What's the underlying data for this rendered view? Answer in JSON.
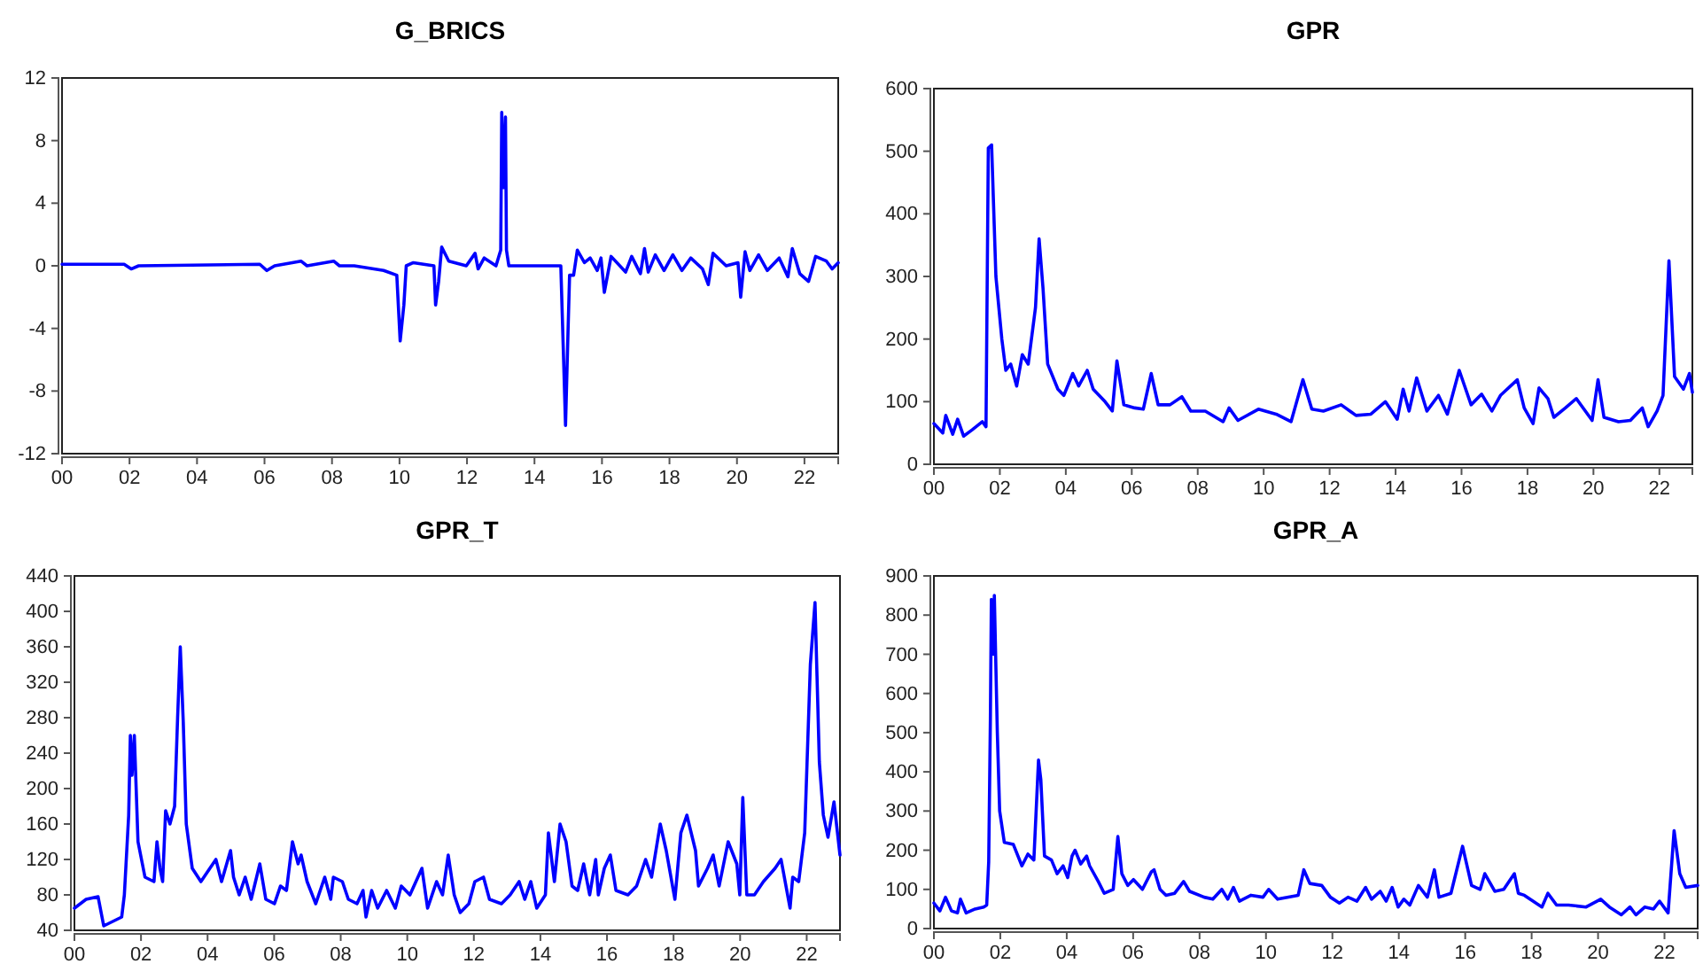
{
  "chart_data": [
    {
      "type": "line",
      "title": "G_BRICS",
      "xlim": [
        0,
        23
      ],
      "xticks": [
        {
          "value": 0,
          "label": "00"
        },
        {
          "value": 2,
          "label": "02"
        },
        {
          "value": 4,
          "label": "04"
        },
        {
          "value": 6,
          "label": "06"
        },
        {
          "value": 8,
          "label": "08"
        },
        {
          "value": 10,
          "label": "10"
        },
        {
          "value": 12,
          "label": "12"
        },
        {
          "value": 14,
          "label": "14"
        },
        {
          "value": 16,
          "label": "16"
        },
        {
          "value": 18,
          "label": "18"
        },
        {
          "value": 20,
          "label": "20"
        },
        {
          "value": 22,
          "label": "22"
        }
      ],
      "ylim": [
        -12,
        12
      ],
      "yticks": [
        -12,
        -8,
        -4,
        0,
        4,
        8,
        12
      ],
      "grid": false,
      "marker": "none",
      "line_style": "solid",
      "x": [
        0.0,
        1.84,
        2.05,
        2.27,
        5.86,
        6.07,
        6.3,
        7.08,
        7.26,
        8.05,
        8.22,
        8.66,
        9.53,
        9.92,
        10.02,
        10.13,
        10.2,
        10.41,
        11.02,
        11.07,
        11.16,
        11.25,
        11.46,
        11.98,
        12.24,
        12.33,
        12.51,
        12.86,
        13.0,
        13.03,
        13.08,
        13.14,
        13.17,
        13.24,
        14.78,
        14.87,
        14.92,
        14.99,
        15.04,
        15.16,
        15.27,
        15.48,
        15.65,
        15.86,
        15.97,
        16.07,
        16.27,
        16.7,
        16.88,
        17.14,
        17.26,
        17.37,
        17.58,
        17.84,
        18.1,
        18.37,
        18.63,
        18.98,
        19.15,
        19.29,
        19.68,
        20.03,
        20.11,
        20.24,
        20.38,
        20.64,
        20.9,
        21.25,
        21.51,
        21.64,
        21.86,
        22.12,
        22.33,
        22.65,
        22.82,
        23.0
      ],
      "series": [
        {
          "color": "#0000ff",
          "values": [
            0.1,
            0.1,
            -0.2,
            0,
            0.1,
            -0.3,
            0,
            0.3,
            0,
            0.3,
            0,
            0,
            -0.3,
            -0.6,
            -4.8,
            -2.5,
            0,
            0.2,
            0,
            -2.5,
            -1,
            1.2,
            0.3,
            0,
            0.8,
            -0.2,
            0.5,
            0,
            1,
            9.8,
            5,
            9.5,
            1,
            0,
            0,
            -6.5,
            -10.2,
            -4.5,
            -0.6,
            -0.6,
            1,
            0.2,
            0.5,
            -0.3,
            0.5,
            -1.7,
            0.6,
            -0.4,
            0.6,
            -0.5,
            1.1,
            -0.4,
            0.7,
            -0.3,
            0.7,
            -0.3,
            0.5,
            -0.2,
            -1.2,
            0.8,
            0,
            0.2,
            -2,
            0.9,
            -0.3,
            0.7,
            -0.3,
            0.5,
            -0.7,
            1.1,
            -0.5,
            -1,
            0.6,
            0.3,
            -0.2,
            0.2
          ]
        }
      ]
    },
    {
      "type": "line",
      "title": "GPR",
      "xlim": [
        0,
        23
      ],
      "xticks": [
        {
          "value": 0,
          "label": "00"
        },
        {
          "value": 2,
          "label": "02"
        },
        {
          "value": 4,
          "label": "04"
        },
        {
          "value": 6,
          "label": "06"
        },
        {
          "value": 8,
          "label": "08"
        },
        {
          "value": 10,
          "label": "10"
        },
        {
          "value": 12,
          "label": "12"
        },
        {
          "value": 14,
          "label": "14"
        },
        {
          "value": 16,
          "label": "16"
        },
        {
          "value": 18,
          "label": "18"
        },
        {
          "value": 20,
          "label": "20"
        },
        {
          "value": 22,
          "label": "22"
        }
      ],
      "ylim": [
        0,
        600
      ],
      "yticks": [
        0,
        100,
        200,
        300,
        400,
        500,
        600
      ],
      "grid": false,
      "marker": "none",
      "line_style": "solid",
      "x": [
        0.0,
        0.27,
        0.36,
        0.57,
        0.72,
        0.9,
        1.16,
        1.47,
        1.58,
        1.65,
        1.75,
        1.88,
        2.06,
        2.18,
        2.33,
        2.51,
        2.68,
        2.86,
        3.08,
        3.19,
        3.31,
        3.45,
        3.76,
        3.94,
        4.21,
        4.39,
        4.65,
        4.83,
        5.19,
        5.41,
        5.55,
        5.76,
        6.09,
        6.35,
        6.59,
        6.8,
        7.16,
        7.52,
        7.79,
        8.23,
        8.77,
        8.95,
        9.22,
        9.84,
        10.38,
        10.83,
        11.19,
        11.46,
        11.81,
        12.35,
        12.8,
        13.25,
        13.69,
        14.05,
        14.23,
        14.41,
        14.64,
        14.95,
        15.3,
        15.57,
        15.93,
        16.29,
        16.61,
        16.92,
        17.18,
        17.69,
        17.9,
        18.17,
        18.35,
        18.62,
        18.8,
        19.15,
        19.48,
        19.96,
        20.14,
        20.32,
        20.76,
        21.12,
        21.48,
        21.66,
        21.93,
        22.11,
        22.29,
        22.46,
        22.73,
        22.91,
        23.0
      ],
      "series": [
        {
          "color": "#0000ff",
          "values": [
            65,
            50,
            78,
            48,
            72,
            45,
            55,
            68,
            60,
            505,
            510,
            300,
            200,
            150,
            160,
            125,
            175,
            160,
            250,
            360,
            280,
            160,
            120,
            110,
            145,
            125,
            150,
            120,
            100,
            85,
            165,
            95,
            90,
            88,
            145,
            95,
            95,
            108,
            85,
            85,
            68,
            90,
            70,
            88,
            80,
            68,
            135,
            88,
            85,
            95,
            78,
            80,
            100,
            72,
            120,
            85,
            138,
            85,
            110,
            80,
            150,
            95,
            112,
            85,
            110,
            135,
            90,
            65,
            122,
            105,
            75,
            90,
            105,
            70,
            135,
            75,
            68,
            70,
            90,
            60,
            85,
            110,
            325,
            140,
            120,
            145,
            115
          ]
        }
      ]
    },
    {
      "type": "line",
      "title": "GPR_T",
      "xlim": [
        0,
        23
      ],
      "xticks": [
        {
          "value": 0,
          "label": "00"
        },
        {
          "value": 2,
          "label": "02"
        },
        {
          "value": 4,
          "label": "04"
        },
        {
          "value": 6,
          "label": "06"
        },
        {
          "value": 8,
          "label": "08"
        },
        {
          "value": 10,
          "label": "10"
        },
        {
          "value": 12,
          "label": "12"
        },
        {
          "value": 14,
          "label": "14"
        },
        {
          "value": 16,
          "label": "16"
        },
        {
          "value": 18,
          "label": "18"
        },
        {
          "value": 20,
          "label": "20"
        },
        {
          "value": 22,
          "label": "22"
        }
      ],
      "ylim": [
        40,
        440
      ],
      "yticks": [
        40,
        80,
        120,
        160,
        200,
        240,
        280,
        320,
        360,
        400,
        440
      ],
      "grid": false,
      "marker": "none",
      "line_style": "solid",
      "x": [
        0.0,
        0.35,
        0.71,
        0.88,
        1.42,
        1.5,
        1.63,
        1.68,
        1.73,
        1.8,
        1.91,
        2.12,
        2.39,
        2.48,
        2.57,
        2.65,
        2.74,
        2.87,
        3.01,
        3.1,
        3.18,
        3.27,
        3.36,
        3.54,
        3.8,
        3.98,
        4.25,
        4.42,
        4.69,
        4.78,
        4.95,
        5.13,
        5.31,
        5.57,
        5.75,
        6.01,
        6.19,
        6.37,
        6.55,
        6.72,
        6.81,
        6.99,
        7.25,
        7.52,
        7.7,
        7.78,
        8.05,
        8.23,
        8.49,
        8.67,
        8.76,
        8.93,
        9.11,
        9.38,
        9.64,
        9.82,
        10.08,
        10.44,
        10.61,
        10.88,
        11.06,
        11.23,
        11.41,
        11.59,
        11.85,
        12.03,
        12.29,
        12.47,
        12.83,
        13.09,
        13.36,
        13.53,
        13.71,
        13.89,
        14.15,
        14.24,
        14.42,
        14.59,
        14.77,
        14.95,
        15.12,
        15.3,
        15.48,
        15.66,
        15.74,
        15.92,
        16.1,
        16.27,
        16.63,
        16.89,
        17.16,
        17.34,
        17.6,
        17.78,
        18.04,
        18.22,
        18.4,
        18.66,
        18.75,
        19.02,
        19.19,
        19.37,
        19.64,
        19.9,
        19.99,
        20.08,
        20.2,
        20.43,
        20.7,
        21.05,
        21.23,
        21.5,
        21.58,
        21.76,
        21.94,
        22.11,
        22.25,
        22.38,
        22.5,
        22.64,
        22.82,
        23.0
      ],
      "series": [
        {
          "color": "#0000ff",
          "values": [
            65,
            75,
            78,
            45,
            55,
            80,
            170,
            260,
            215,
            260,
            140,
            100,
            95,
            140,
            110,
            95,
            175,
            160,
            180,
            280,
            360,
            275,
            160,
            110,
            95,
            105,
            120,
            95,
            130,
            100,
            80,
            100,
            75,
            115,
            75,
            70,
            90,
            85,
            140,
            115,
            125,
            95,
            70,
            100,
            75,
            100,
            95,
            75,
            70,
            85,
            55,
            85,
            65,
            85,
            65,
            90,
            80,
            110,
            65,
            95,
            80,
            125,
            80,
            60,
            70,
            95,
            100,
            75,
            70,
            80,
            95,
            75,
            95,
            65,
            80,
            150,
            95,
            160,
            140,
            90,
            85,
            115,
            80,
            120,
            80,
            110,
            125,
            85,
            80,
            90,
            120,
            100,
            160,
            130,
            75,
            150,
            170,
            130,
            90,
            110,
            125,
            90,
            140,
            115,
            80,
            190,
            80,
            80,
            95,
            110,
            120,
            65,
            100,
            95,
            150,
            340,
            410,
            230,
            170,
            145,
            185,
            125
          ]
        }
      ]
    },
    {
      "type": "line",
      "title": "GPR_A",
      "xlim": [
        0,
        23
      ],
      "xticks": [
        {
          "value": 0,
          "label": "00"
        },
        {
          "value": 2,
          "label": "02"
        },
        {
          "value": 4,
          "label": "04"
        },
        {
          "value": 6,
          "label": "06"
        },
        {
          "value": 8,
          "label": "08"
        },
        {
          "value": 10,
          "label": "10"
        },
        {
          "value": 12,
          "label": "12"
        },
        {
          "value": 14,
          "label": "14"
        },
        {
          "value": 16,
          "label": "16"
        },
        {
          "value": 18,
          "label": "18"
        },
        {
          "value": 20,
          "label": "20"
        },
        {
          "value": 22,
          "label": "22"
        }
      ],
      "ylim": [
        0,
        900
      ],
      "yticks": [
        0,
        100,
        200,
        300,
        400,
        500,
        600,
        700,
        800,
        900
      ],
      "grid": false,
      "marker": "none",
      "line_style": "solid",
      "x": [
        0.0,
        0.18,
        0.35,
        0.53,
        0.71,
        0.8,
        0.97,
        1.24,
        1.5,
        1.59,
        1.65,
        1.7,
        1.73,
        1.79,
        1.82,
        1.91,
        1.98,
        2.12,
        2.39,
        2.65,
        2.83,
        3.01,
        3.15,
        3.22,
        3.33,
        3.54,
        3.71,
        3.89,
        4.03,
        4.16,
        4.25,
        4.42,
        4.6,
        4.69,
        4.95,
        5.13,
        5.4,
        5.54,
        5.66,
        5.84,
        6.01,
        6.28,
        6.55,
        6.63,
        6.81,
        6.99,
        7.25,
        7.52,
        7.7,
        8.14,
        8.4,
        8.67,
        8.85,
        9.02,
        9.2,
        9.55,
        9.91,
        10.08,
        10.35,
        10.97,
        11.14,
        11.32,
        11.68,
        11.94,
        12.21,
        12.47,
        12.74,
        13.0,
        13.18,
        13.44,
        13.62,
        13.8,
        13.98,
        14.15,
        14.33,
        14.59,
        14.86,
        15.07,
        15.21,
        15.57,
        15.92,
        16.19,
        16.45,
        16.59,
        16.89,
        17.16,
        17.48,
        17.6,
        17.78,
        18.04,
        18.31,
        18.49,
        18.75,
        19.11,
        19.64,
        20.08,
        20.34,
        20.7,
        20.96,
        21.14,
        21.41,
        21.67,
        21.85,
        22.11,
        22.29,
        22.46,
        22.64,
        23.0
      ],
      "series": [
        {
          "color": "#0000ff",
          "values": [
            65,
            45,
            80,
            45,
            40,
            75,
            40,
            50,
            55,
            60,
            170,
            530,
            840,
            700,
            850,
            500,
            300,
            220,
            215,
            160,
            190,
            175,
            430,
            380,
            185,
            175,
            140,
            160,
            130,
            185,
            200,
            165,
            185,
            160,
            120,
            90,
            100,
            235,
            140,
            110,
            125,
            100,
            145,
            150,
            100,
            85,
            90,
            120,
            95,
            80,
            75,
            100,
            75,
            105,
            70,
            85,
            80,
            100,
            75,
            85,
            150,
            115,
            110,
            80,
            65,
            80,
            70,
            105,
            75,
            95,
            70,
            105,
            55,
            75,
            60,
            110,
            80,
            150,
            80,
            90,
            210,
            110,
            100,
            140,
            95,
            100,
            140,
            90,
            85,
            70,
            55,
            90,
            60,
            60,
            55,
            75,
            55,
            35,
            55,
            35,
            55,
            50,
            70,
            40,
            250,
            140,
            105,
            110
          ]
        }
      ]
    }
  ]
}
